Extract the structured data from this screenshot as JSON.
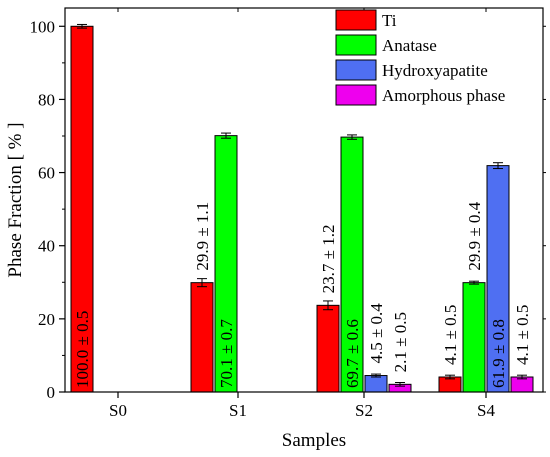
{
  "chart_data": {
    "type": "bar",
    "xlabel": "Samples",
    "ylabel": "Phase Fraction [ % ]",
    "categories": [
      "S0",
      "S1",
      "S2",
      "S4"
    ],
    "ylim": [
      0,
      105
    ],
    "yticks": [
      0,
      20,
      40,
      60,
      80,
      100
    ],
    "grid": false,
    "legend_position": "top-right",
    "series": [
      {
        "name": "Ti",
        "color": "#ff0000",
        "values": [
          100.0,
          29.9,
          23.7,
          4.1
        ],
        "errors": [
          0.5,
          1.1,
          1.2,
          0.5
        ],
        "labels": [
          "100.0 ± 0.5",
          "29.9 ± 1.1",
          "23.7 ± 1.2",
          "4.1 ± 0.5"
        ]
      },
      {
        "name": "Anatase",
        "color": "#00ff00",
        "values": [
          null,
          70.1,
          69.7,
          29.9
        ],
        "errors": [
          null,
          0.7,
          0.6,
          0.4
        ],
        "labels": [
          "",
          "70.1 ± 0.7",
          "69.7 ± 0.6",
          "29.9 ± 0.4"
        ]
      },
      {
        "name": "Hydroxyapatite",
        "color": "#4f6ff2",
        "values": [
          null,
          null,
          4.5,
          61.9
        ],
        "errors": [
          null,
          null,
          0.4,
          0.8
        ],
        "labels": [
          "",
          "",
          "4.5 ± 0.4",
          "61.9 ± 0.8"
        ]
      },
      {
        "name": "Amorphous phase",
        "color": "#ee00ee",
        "values": [
          null,
          null,
          2.1,
          4.1
        ],
        "errors": [
          null,
          null,
          0.5,
          0.5
        ],
        "labels": [
          "",
          "",
          "2.1 ± 0.5",
          "4.1 ± 0.5"
        ]
      }
    ]
  }
}
